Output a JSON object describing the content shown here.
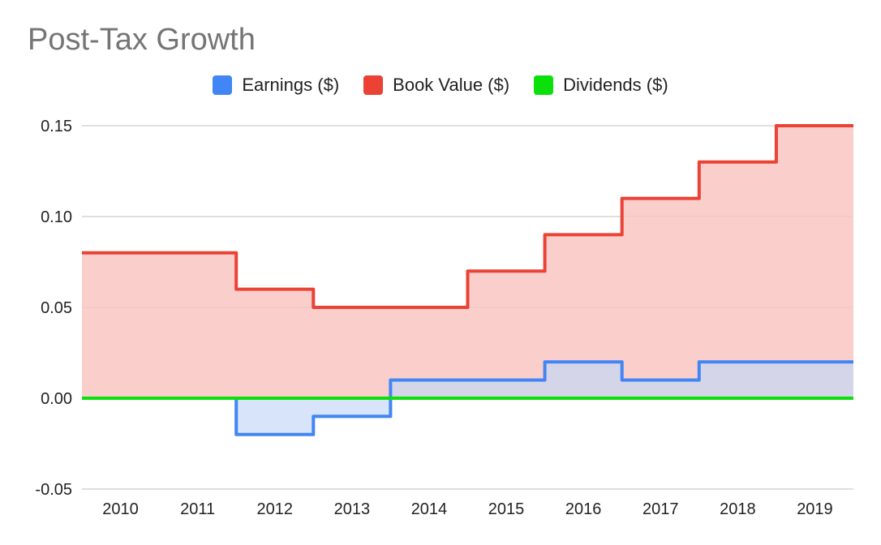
{
  "chart_data": {
    "type": "area",
    "title": "Post-Tax Growth",
    "xlabel": "",
    "ylabel": "",
    "categories": [
      "2010",
      "2011",
      "2012",
      "2013",
      "2014",
      "2015",
      "2016",
      "2017",
      "2018",
      "2019"
    ],
    "series": [
      {
        "name": "Earnings ($)",
        "values": [
          0.0,
          0.0,
          -0.02,
          -0.01,
          0.01,
          0.01,
          0.02,
          0.01,
          0.02,
          0.02
        ],
        "color": "#4285f4",
        "fill": "#c6d9f7"
      },
      {
        "name": "Book Value ($)",
        "values": [
          0.08,
          0.08,
          0.06,
          0.05,
          0.05,
          0.07,
          0.09,
          0.11,
          0.13,
          0.15
        ],
        "color": "#ea4335",
        "fill": "#f8c6c2"
      },
      {
        "name": "Dividends ($)",
        "values": [
          0,
          0,
          0,
          0,
          0,
          0,
          0,
          0,
          0,
          0
        ],
        "color": "#0be00b",
        "fill": "#c6f5c6"
      }
    ],
    "ylim": [
      -0.05,
      0.15
    ],
    "yticks": [
      "-0.05",
      "0.00",
      "0.05",
      "0.10",
      "0.15"
    ],
    "grid": true,
    "legend_position": "top",
    "step": true
  }
}
